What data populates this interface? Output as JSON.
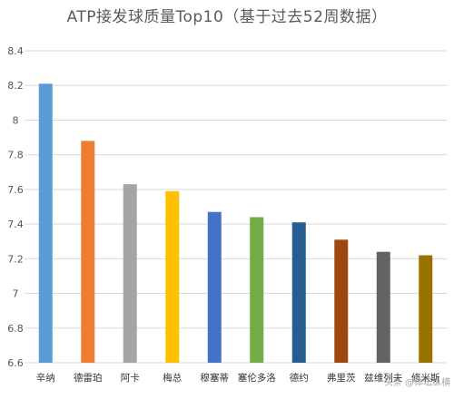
{
  "chart_data": {
    "type": "bar",
    "title": "ATP接发球质量Top10（基于过去52周数据）",
    "categories": [
      "辛纳",
      "德雷珀",
      "阿卡",
      "梅总",
      "穆塞蒂",
      "塞伦多洛",
      "德约",
      "弗里茨",
      "兹维列夫",
      "修米斯"
    ],
    "values": [
      8.21,
      7.88,
      7.63,
      7.59,
      7.47,
      7.44,
      7.41,
      7.31,
      7.24,
      7.22
    ],
    "colors": [
      "#5b9bd5",
      "#ed7d31",
      "#a5a5a5",
      "#ffc000",
      "#4472c4",
      "#70ad47",
      "#255e91",
      "#9e480e",
      "#636363",
      "#997300"
    ],
    "ylim": [
      6.6,
      8.4
    ],
    "yticks": [
      "6.6",
      "6.8",
      "7",
      "7.2",
      "7.4",
      "7.6",
      "7.8",
      "8",
      "8.2",
      "8.4"
    ],
    "grid": true,
    "legend": "none"
  },
  "watermark": "头条 @体坛纵横"
}
